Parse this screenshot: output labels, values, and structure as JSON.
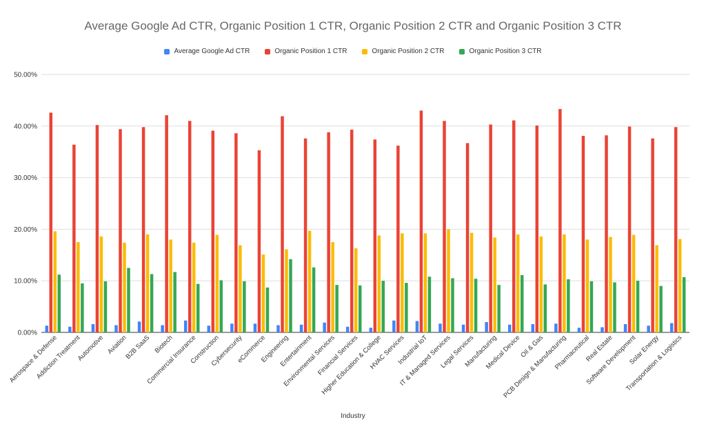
{
  "chart_data": {
    "type": "bar",
    "title": "Average Google Ad CTR, Organic Position 1 CTR, Organic Position 2 CTR and Organic Position 3 CTR",
    "xlabel": "Industry",
    "ylabel": "",
    "ylim": [
      0,
      50
    ],
    "yticks": [
      "0.00%",
      "10.00%",
      "20.00%",
      "30.00%",
      "40.00%",
      "50.00%"
    ],
    "grid": true,
    "legend_position": "top",
    "categories": [
      "Aerospace & Defense",
      "Addiction Treatment",
      "Automotive",
      "Aviation",
      "B2B SaaS",
      "Biotech",
      "Commercial Insurance",
      "Construction",
      "Cybersecurity",
      "eCommerce",
      "Engineering",
      "Entertainment",
      "Environmental Services",
      "Financial Services",
      "Higher Education & College",
      "HVAC Services",
      "Industrial IoT",
      "IT & Managed Services",
      "Legal Services",
      "Manufacturing",
      "Medical Device",
      "Oil & Gas",
      "PCB Design & Manufacturing",
      "Pharmaceutical",
      "Real Estate",
      "Software Development",
      "Solar Energy",
      "Transportation & Logistics"
    ],
    "series": [
      {
        "name": "Average Google Ad CTR",
        "color": "#4285f4",
        "values": [
          1.3,
          1.1,
          1.6,
          1.4,
          2.1,
          1.4,
          2.3,
          1.3,
          1.7,
          1.7,
          1.4,
          1.5,
          1.9,
          1.1,
          0.9,
          2.3,
          2.2,
          1.7,
          1.5,
          2.0,
          1.5,
          1.6,
          1.7,
          0.9,
          1.0,
          1.6,
          1.3,
          1.8
        ]
      },
      {
        "name": "Organic Position 1 CTR",
        "color": "#ea4335",
        "values": [
          42.6,
          36.4,
          40.2,
          39.4,
          39.8,
          42.1,
          41.0,
          39.1,
          38.6,
          35.3,
          41.9,
          37.6,
          38.8,
          39.3,
          37.4,
          36.2,
          43.0,
          41.0,
          36.7,
          40.3,
          41.1,
          40.1,
          43.3,
          38.1,
          38.2,
          39.9,
          37.6,
          39.8
        ]
      },
      {
        "name": "Organic Position 2 CTR",
        "color": "#fbbc04",
        "values": [
          19.6,
          17.5,
          18.6,
          17.4,
          19.0,
          18.0,
          17.4,
          18.9,
          16.9,
          15.1,
          16.1,
          19.7,
          17.5,
          16.3,
          18.8,
          19.2,
          19.2,
          20.0,
          19.3,
          18.4,
          19.0,
          18.6,
          19.0,
          18.0,
          18.5,
          18.9,
          16.9,
          18.1
        ]
      },
      {
        "name": "Organic Position 3 CTR",
        "color": "#34a853",
        "values": [
          11.2,
          9.5,
          9.9,
          12.5,
          11.3,
          11.7,
          9.4,
          10.1,
          9.9,
          8.7,
          14.2,
          12.6,
          9.2,
          9.1,
          10.0,
          9.6,
          10.8,
          10.5,
          10.4,
          9.2,
          11.1,
          9.3,
          10.3,
          9.9,
          9.7,
          10.0,
          9.0,
          10.7
        ]
      }
    ]
  }
}
